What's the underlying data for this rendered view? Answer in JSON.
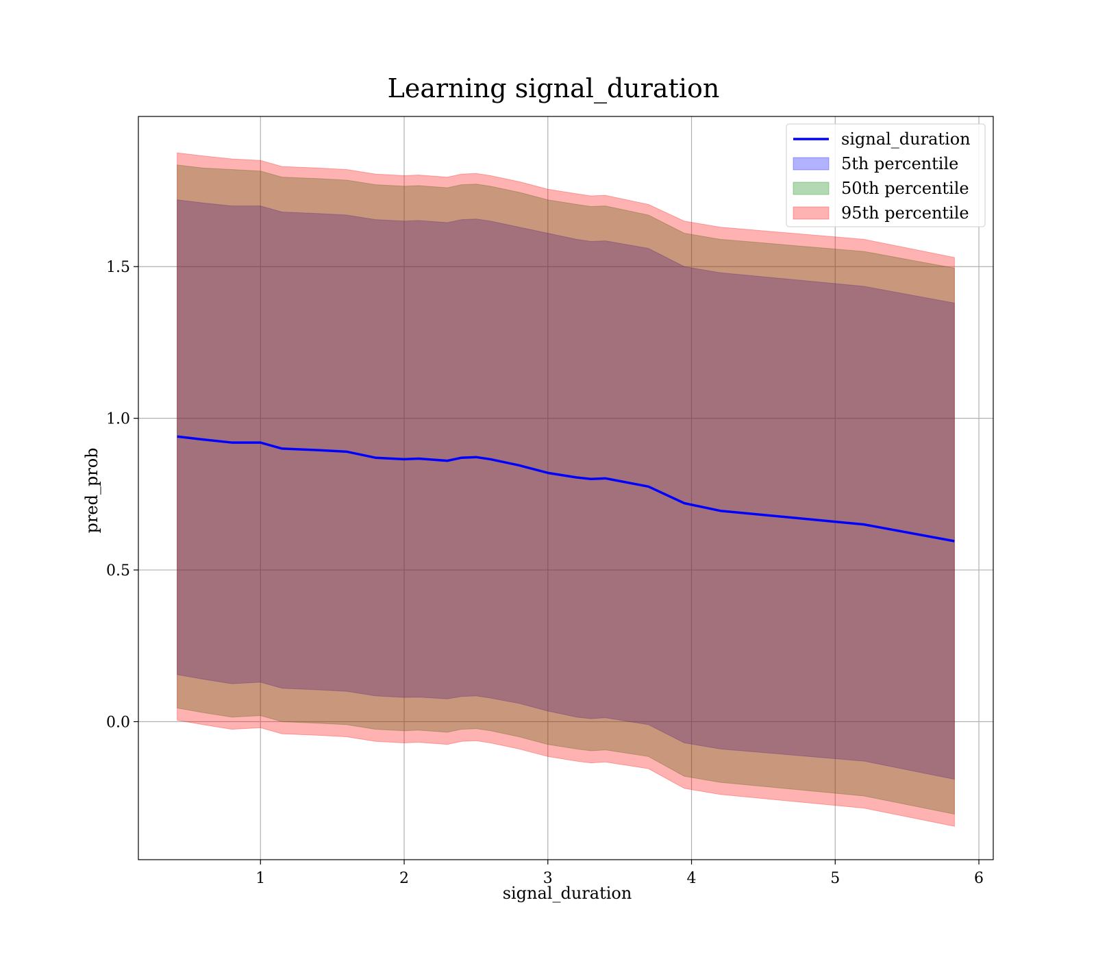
{
  "chart_data": {
    "type": "area",
    "title": "Learning signal_duration",
    "xlabel": "signal_duration",
    "ylabel": "pred_prob",
    "xlim": [
      0.15,
      6.1
    ],
    "ylim": [
      -0.455,
      1.995
    ],
    "xticks": [
      1,
      2,
      3,
      4,
      5,
      6
    ],
    "yticks": [
      0.0,
      0.5,
      1.0,
      1.5
    ],
    "xtick_labels": [
      "1",
      "2",
      "3",
      "4",
      "5",
      "6"
    ],
    "ytick_labels": [
      "0.0",
      "0.5",
      "1.0",
      "1.5"
    ],
    "grid": true,
    "legend_position": "top-right",
    "x": [
      0.42,
      0.6,
      0.8,
      1.0,
      1.15,
      1.4,
      1.6,
      1.8,
      2.0,
      2.1,
      2.3,
      2.4,
      2.5,
      2.6,
      2.8,
      3.0,
      3.2,
      3.3,
      3.4,
      3.7,
      3.95,
      4.2,
      5.2,
      5.83
    ],
    "series": [
      {
        "name": "signal_duration",
        "kind": "line",
        "color": "#0000ff",
        "values": [
          0.94,
          0.93,
          0.92,
          0.92,
          0.9,
          0.895,
          0.89,
          0.87,
          0.865,
          0.867,
          0.86,
          0.87,
          0.872,
          0.865,
          0.845,
          0.82,
          0.805,
          0.8,
          0.802,
          0.775,
          0.72,
          0.695,
          0.65,
          0.595
        ]
      },
      {
        "name": "5th percentile",
        "kind": "band",
        "color": "#0000ff",
        "upper": [
          1.72,
          1.71,
          1.7,
          1.7,
          1.68,
          1.675,
          1.67,
          1.655,
          1.65,
          1.652,
          1.645,
          1.655,
          1.657,
          1.65,
          1.63,
          1.61,
          1.59,
          1.583,
          1.585,
          1.56,
          1.5,
          1.48,
          1.435,
          1.38
        ],
        "lower": [
          0.155,
          0.14,
          0.125,
          0.13,
          0.11,
          0.105,
          0.1,
          0.085,
          0.08,
          0.081,
          0.075,
          0.083,
          0.085,
          0.078,
          0.06,
          0.035,
          0.015,
          0.01,
          0.013,
          -0.01,
          -0.07,
          -0.09,
          -0.13,
          -0.19
        ]
      },
      {
        "name": "50th percentile",
        "kind": "band",
        "color": "#008000",
        "upper": [
          1.835,
          1.825,
          1.82,
          1.815,
          1.795,
          1.79,
          1.785,
          1.77,
          1.765,
          1.767,
          1.76,
          1.77,
          1.772,
          1.765,
          1.745,
          1.72,
          1.705,
          1.698,
          1.7,
          1.67,
          1.61,
          1.59,
          1.55,
          1.495
        ],
        "lower": [
          0.045,
          0.03,
          0.015,
          0.02,
          0.0,
          -0.005,
          -0.01,
          -0.025,
          -0.03,
          -0.028,
          -0.035,
          -0.025,
          -0.023,
          -0.03,
          -0.05,
          -0.075,
          -0.09,
          -0.096,
          -0.093,
          -0.115,
          -0.18,
          -0.2,
          -0.245,
          -0.305
        ]
      },
      {
        "name": "95th percentile",
        "kind": "band",
        "color": "#ff0000",
        "upper": [
          1.875,
          1.865,
          1.855,
          1.85,
          1.83,
          1.825,
          1.82,
          1.805,
          1.8,
          1.802,
          1.795,
          1.805,
          1.807,
          1.8,
          1.78,
          1.755,
          1.74,
          1.733,
          1.735,
          1.705,
          1.65,
          1.63,
          1.59,
          1.53
        ],
        "lower": [
          0.005,
          -0.01,
          -0.025,
          -0.02,
          -0.04,
          -0.045,
          -0.05,
          -0.065,
          -0.07,
          -0.068,
          -0.075,
          -0.065,
          -0.063,
          -0.07,
          -0.09,
          -0.115,
          -0.13,
          -0.136,
          -0.133,
          -0.155,
          -0.22,
          -0.24,
          -0.285,
          -0.345
        ]
      }
    ]
  }
}
